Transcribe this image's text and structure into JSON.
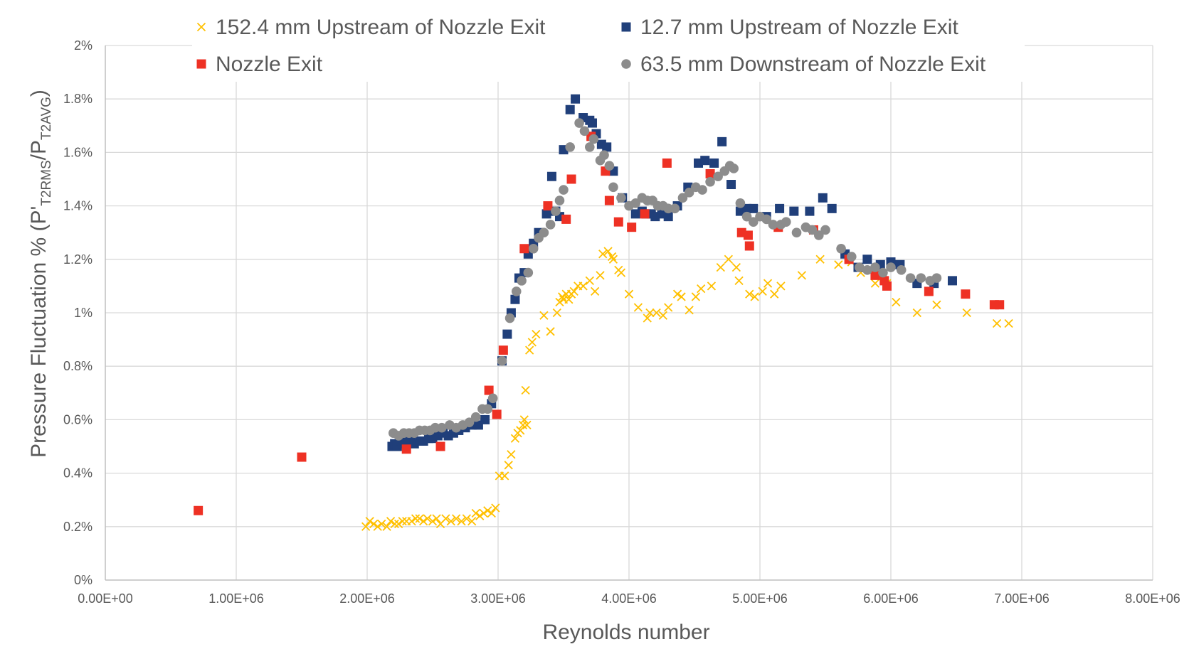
{
  "chart_data": {
    "type": "scatter",
    "title": "",
    "xlabel": "Reynolds number",
    "ylabel": {
      "prefix": "Pressure Fluctuation % (P'",
      "sub1": "T2RMS",
      "mid": "/P",
      "sub2": "T2AVG",
      "suffix": ")"
    },
    "xlim": [
      0,
      8000000
    ],
    "ylim": [
      0,
      2
    ],
    "x_ticks": [
      {
        "value": 0,
        "label": "0.00E+00"
      },
      {
        "value": 1000000,
        "label": "1.00E+06"
      },
      {
        "value": 2000000,
        "label": "2.00E+06"
      },
      {
        "value": 3000000,
        "label": "3.00E+06"
      },
      {
        "value": 4000000,
        "label": "4.00E+06"
      },
      {
        "value": 5000000,
        "label": "5.00E+06"
      },
      {
        "value": 6000000,
        "label": "6.00E+06"
      },
      {
        "value": 7000000,
        "label": "7.00E+06"
      },
      {
        "value": 8000000,
        "label": "8.00E+06"
      }
    ],
    "y_ticks": [
      {
        "value": 0,
        "label": "0%"
      },
      {
        "value": 0.2,
        "label": "0.2%"
      },
      {
        "value": 0.4,
        "label": "0.4%"
      },
      {
        "value": 0.6,
        "label": "0.6%"
      },
      {
        "value": 0.8,
        "label": "0.8%"
      },
      {
        "value": 1.0,
        "label": "1%"
      },
      {
        "value": 1.2,
        "label": "1.2%"
      },
      {
        "value": 1.4,
        "label": "1.4%"
      },
      {
        "value": 1.6,
        "label": "1.6%"
      },
      {
        "value": 1.8,
        "label": "1.8%"
      },
      {
        "value": 2.0,
        "label": "2%"
      }
    ],
    "grid": true,
    "legend_position": "top",
    "series": [
      {
        "name": "152.4 mm Upstream of Nozzle Exit",
        "marker": "x",
        "color": "#ffc000",
        "x": [
          1990000,
          2020000,
          2050000,
          2080000,
          2110000,
          2150000,
          2180000,
          2210000,
          2240000,
          2270000,
          2300000,
          2340000,
          2370000,
          2400000,
          2430000,
          2460000,
          2500000,
          2530000,
          2560000,
          2600000,
          2640000,
          2680000,
          2720000,
          2760000,
          2800000,
          2830000,
          2860000,
          2890000,
          2920000,
          2950000,
          2980000,
          3010000,
          3050000,
          3080000,
          3100000,
          3130000,
          3150000,
          3170000,
          3190000,
          3200000,
          3210000,
          3220000,
          3240000,
          3260000,
          3290000,
          3350000,
          3400000,
          3450000,
          3470000,
          3490000,
          3500000,
          3520000,
          3540000,
          3560000,
          3580000,
          3610000,
          3650000,
          3700000,
          3740000,
          3780000,
          3800000,
          3840000,
          3870000,
          3880000,
          3920000,
          3940000,
          4000000,
          4070000,
          4140000,
          4160000,
          4210000,
          4260000,
          4300000,
          4370000,
          4400000,
          4460000,
          4510000,
          4550000,
          4630000,
          4700000,
          4760000,
          4820000,
          4840000,
          4920000,
          4960000,
          5020000,
          5060000,
          5110000,
          5160000,
          5320000,
          5460000,
          5600000,
          5700000,
          5770000,
          5880000,
          5970000,
          6040000,
          6200000,
          6350000,
          6580000,
          6810000,
          6900000
        ],
        "y": [
          0.2,
          0.22,
          0.21,
          0.2,
          0.21,
          0.2,
          0.22,
          0.21,
          0.21,
          0.22,
          0.22,
          0.22,
          0.23,
          0.23,
          0.22,
          0.23,
          0.22,
          0.23,
          0.21,
          0.23,
          0.22,
          0.23,
          0.22,
          0.23,
          0.22,
          0.25,
          0.24,
          0.25,
          0.26,
          0.25,
          0.27,
          0.39,
          0.39,
          0.43,
          0.47,
          0.53,
          0.55,
          0.56,
          0.58,
          0.6,
          0.71,
          0.58,
          0.86,
          0.89,
          0.92,
          0.99,
          0.93,
          1.0,
          1.04,
          1.06,
          1.05,
          1.07,
          1.05,
          1.07,
          1.08,
          1.1,
          1.1,
          1.12,
          1.08,
          1.14,
          1.22,
          1.23,
          1.21,
          1.2,
          1.16,
          1.15,
          1.07,
          1.02,
          0.98,
          1.0,
          1.0,
          0.99,
          1.02,
          1.07,
          1.06,
          1.01,
          1.06,
          1.09,
          1.1,
          1.17,
          1.2,
          1.17,
          1.12,
          1.07,
          1.06,
          1.08,
          1.11,
          1.07,
          1.1,
          1.14,
          1.2,
          1.18,
          1.19,
          1.15,
          1.11,
          1.11,
          1.04,
          1.0,
          1.03,
          1.0,
          0.96,
          0.96
        ]
      },
      {
        "name": "12.7 mm Upstream of Nozzle Exit",
        "marker": "square",
        "color": "#203f7a",
        "x": [
          2190000,
          2210000,
          2230000,
          2250000,
          2270000,
          2300000,
          2330000,
          2360000,
          2400000,
          2430000,
          2470000,
          2500000,
          2540000,
          2580000,
          2620000,
          2660000,
          2700000,
          2750000,
          2800000,
          2850000,
          2900000,
          2950000,
          3030000,
          3070000,
          3100000,
          3130000,
          3160000,
          3200000,
          3230000,
          3270000,
          3310000,
          3370000,
          3410000,
          3440000,
          3470000,
          3500000,
          3550000,
          3590000,
          3650000,
          3700000,
          3720000,
          3750000,
          3790000,
          3830000,
          3880000,
          3950000,
          4050000,
          4100000,
          4130000,
          4170000,
          4200000,
          4250000,
          4300000,
          4370000,
          4450000,
          4530000,
          4580000,
          4650000,
          4710000,
          4780000,
          4850000,
          4900000,
          4950000,
          5050000,
          5150000,
          5260000,
          5380000,
          5480000,
          5550000,
          5650000,
          5750000,
          5820000,
          5920000,
          6000000,
          6070000,
          6200000,
          6330000,
          6470000
        ],
        "y": [
          0.5,
          0.51,
          0.5,
          0.52,
          0.51,
          0.53,
          0.52,
          0.51,
          0.52,
          0.52,
          0.53,
          0.53,
          0.54,
          0.55,
          0.54,
          0.55,
          0.56,
          0.57,
          0.58,
          0.58,
          0.6,
          0.66,
          0.82,
          0.92,
          1.0,
          1.05,
          1.13,
          1.15,
          1.22,
          1.26,
          1.3,
          1.37,
          1.51,
          1.38,
          1.36,
          1.61,
          1.76,
          1.8,
          1.73,
          1.72,
          1.71,
          1.67,
          1.63,
          1.62,
          1.53,
          1.43,
          1.37,
          1.38,
          1.37,
          1.37,
          1.36,
          1.37,
          1.36,
          1.4,
          1.47,
          1.56,
          1.57,
          1.56,
          1.64,
          1.48,
          1.38,
          1.39,
          1.39,
          1.36,
          1.39,
          1.38,
          1.38,
          1.43,
          1.39,
          1.22,
          1.17,
          1.2,
          1.18,
          1.19,
          1.18,
          1.11,
          1.11,
          1.12
        ]
      },
      {
        "name": "Nozzle Exit",
        "marker": "square",
        "color": "#ee3124",
        "x": [
          710000,
          1500000,
          2300000,
          2560000,
          2930000,
          2990000,
          3040000,
          3200000,
          3380000,
          3520000,
          3560000,
          3710000,
          3820000,
          3850000,
          3920000,
          4020000,
          4120000,
          4290000,
          4620000,
          4860000,
          4910000,
          4920000,
          5140000,
          5410000,
          5680000,
          5880000,
          5950000,
          5970000,
          6290000,
          6570000,
          6790000,
          6830000
        ],
        "y": [
          0.26,
          0.46,
          0.49,
          0.5,
          0.71,
          0.62,
          0.86,
          1.24,
          1.4,
          1.35,
          1.5,
          1.66,
          1.53,
          1.42,
          1.34,
          1.32,
          1.37,
          1.56,
          1.52,
          1.3,
          1.29,
          1.25,
          1.32,
          1.31,
          1.2,
          1.14,
          1.12,
          1.1,
          1.08,
          1.07,
          1.03,
          1.03
        ]
      },
      {
        "name": "63.5 mm Downstream of Nozzle Exit",
        "marker": "circle",
        "color": "#8c8c8c",
        "x": [
          2200000,
          2240000,
          2280000,
          2320000,
          2360000,
          2400000,
          2440000,
          2480000,
          2520000,
          2570000,
          2630000,
          2680000,
          2730000,
          2780000,
          2830000,
          2880000,
          2920000,
          2960000,
          3030000,
          3090000,
          3140000,
          3180000,
          3230000,
          3270000,
          3310000,
          3350000,
          3400000,
          3440000,
          3470000,
          3500000,
          3550000,
          3620000,
          3660000,
          3700000,
          3730000,
          3780000,
          3810000,
          3850000,
          3880000,
          3940000,
          4000000,
          4050000,
          4100000,
          4140000,
          4180000,
          4220000,
          4260000,
          4300000,
          4350000,
          4410000,
          4460000,
          4510000,
          4560000,
          4620000,
          4680000,
          4730000,
          4770000,
          4800000,
          4850000,
          4900000,
          4950000,
          5000000,
          5050000,
          5100000,
          5160000,
          5200000,
          5280000,
          5350000,
          5400000,
          5450000,
          5500000,
          5620000,
          5700000,
          5760000,
          5820000,
          5880000,
          5940000,
          6000000,
          6080000,
          6150000,
          6230000,
          6300000,
          6350000
        ],
        "y": [
          0.55,
          0.54,
          0.55,
          0.55,
          0.55,
          0.56,
          0.56,
          0.56,
          0.57,
          0.57,
          0.58,
          0.57,
          0.58,
          0.59,
          0.61,
          0.64,
          0.64,
          0.68,
          0.82,
          0.98,
          1.08,
          1.12,
          1.15,
          1.24,
          1.28,
          1.3,
          1.33,
          1.38,
          1.42,
          1.46,
          1.62,
          1.71,
          1.68,
          1.62,
          1.65,
          1.57,
          1.59,
          1.55,
          1.47,
          1.43,
          1.4,
          1.41,
          1.43,
          1.42,
          1.42,
          1.4,
          1.4,
          1.39,
          1.39,
          1.43,
          1.45,
          1.47,
          1.46,
          1.49,
          1.51,
          1.53,
          1.55,
          1.54,
          1.41,
          1.36,
          1.34,
          1.36,
          1.35,
          1.33,
          1.33,
          1.34,
          1.3,
          1.32,
          1.31,
          1.29,
          1.31,
          1.24,
          1.21,
          1.17,
          1.16,
          1.17,
          1.15,
          1.17,
          1.16,
          1.13,
          1.13,
          1.12,
          1.13
        ]
      }
    ]
  }
}
